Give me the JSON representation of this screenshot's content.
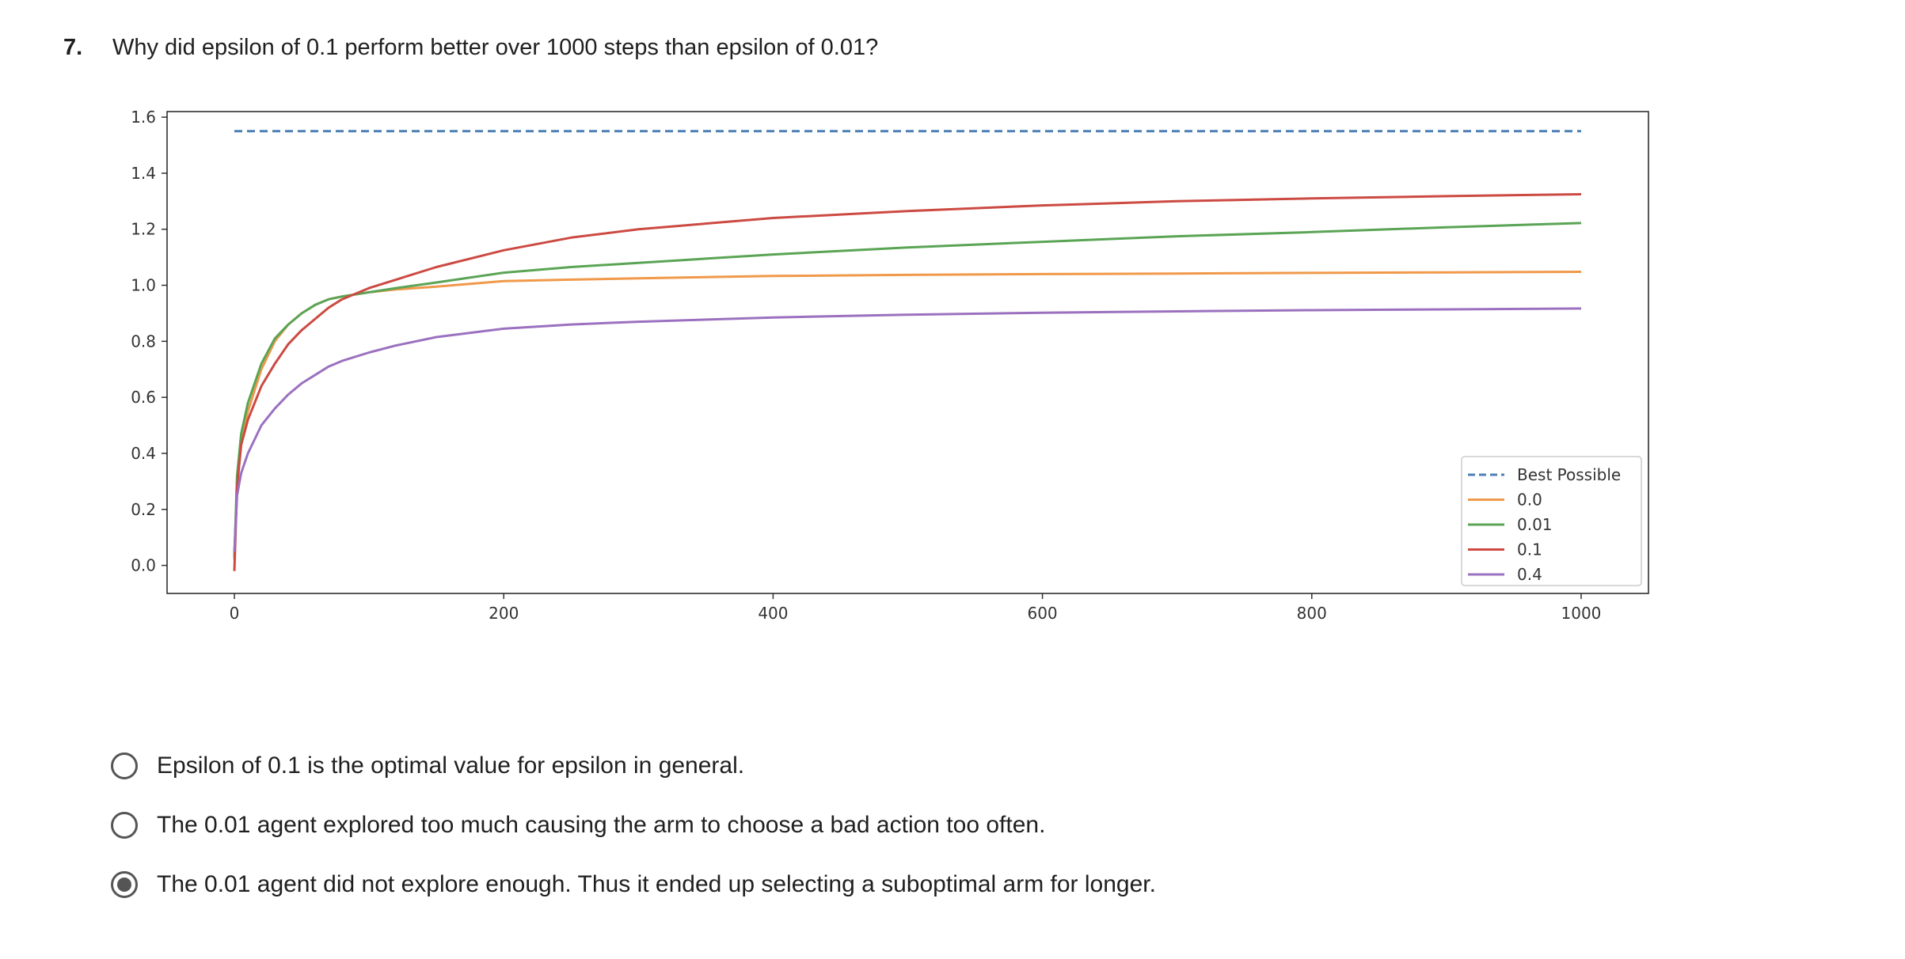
{
  "question": {
    "number": "7.",
    "text": "Why did epsilon of 0.1 perform better over 1000 steps than epsilon of 0.01?"
  },
  "options": [
    {
      "label": "Epsilon of 0.1 is the optimal value for epsilon in general.",
      "selected": false
    },
    {
      "label": "The 0.01 agent explored too much causing the arm to choose a bad action too often.",
      "selected": false
    },
    {
      "label": "The 0.01 agent did not explore enough. Thus it ended up selecting a suboptimal arm for longer.",
      "selected": true
    }
  ],
  "chart_data": {
    "type": "line",
    "title": "",
    "xlabel": "",
    "ylabel": "",
    "xlim": [
      -50,
      1050
    ],
    "ylim": [
      -0.1,
      1.62
    ],
    "xticks": [
      0,
      200,
      400,
      600,
      800,
      1000
    ],
    "yticks": [
      0.0,
      0.2,
      0.4,
      0.6,
      0.8,
      1.0,
      1.2,
      1.4,
      1.6
    ],
    "grid": false,
    "legend_position": "center-right",
    "series": [
      {
        "name": "Best Possible",
        "color": "#4c80b4",
        "dashed": true,
        "x": [
          0,
          1000
        ],
        "y": [
          1.55,
          1.55
        ]
      },
      {
        "name": "0.0",
        "color": "#f0994a",
        "dashed": false,
        "x": [
          0,
          2,
          5,
          10,
          20,
          30,
          40,
          50,
          60,
          70,
          80,
          100,
          120,
          150,
          200,
          250,
          300,
          400,
          500,
          600,
          700,
          800,
          900,
          1000
        ],
        "y": [
          0.02,
          0.3,
          0.45,
          0.55,
          0.7,
          0.8,
          0.86,
          0.9,
          0.93,
          0.95,
          0.96,
          0.975,
          0.985,
          0.995,
          1.015,
          1.02,
          1.025,
          1.033,
          1.037,
          1.04,
          1.042,
          1.044,
          1.046,
          1.048
        ]
      },
      {
        "name": "0.01",
        "color": "#5aa455",
        "dashed": false,
        "x": [
          0,
          2,
          5,
          10,
          20,
          30,
          40,
          50,
          60,
          70,
          80,
          100,
          120,
          150,
          200,
          250,
          300,
          400,
          500,
          600,
          700,
          800,
          900,
          1000
        ],
        "y": [
          0.03,
          0.32,
          0.47,
          0.58,
          0.72,
          0.81,
          0.86,
          0.9,
          0.93,
          0.95,
          0.96,
          0.975,
          0.99,
          1.01,
          1.045,
          1.065,
          1.08,
          1.11,
          1.135,
          1.155,
          1.175,
          1.19,
          1.207,
          1.222
        ]
      },
      {
        "name": "0.1",
        "color": "#cc4a42",
        "dashed": false,
        "x": [
          0,
          2,
          5,
          10,
          20,
          30,
          40,
          50,
          60,
          70,
          80,
          100,
          120,
          150,
          200,
          250,
          300,
          400,
          500,
          600,
          700,
          800,
          900,
          1000
        ],
        "y": [
          -0.02,
          0.28,
          0.43,
          0.52,
          0.64,
          0.72,
          0.79,
          0.84,
          0.88,
          0.92,
          0.95,
          0.99,
          1.02,
          1.065,
          1.125,
          1.17,
          1.2,
          1.24,
          1.265,
          1.285,
          1.3,
          1.31,
          1.318,
          1.325
        ]
      },
      {
        "name": "0.4",
        "color": "#9b71bf",
        "dashed": false,
        "x": [
          0,
          2,
          5,
          10,
          20,
          30,
          40,
          50,
          60,
          70,
          80,
          100,
          120,
          150,
          200,
          250,
          300,
          400,
          500,
          600,
          700,
          800,
          900,
          1000
        ],
        "y": [
          0.05,
          0.25,
          0.33,
          0.4,
          0.5,
          0.56,
          0.61,
          0.65,
          0.68,
          0.71,
          0.73,
          0.76,
          0.785,
          0.815,
          0.845,
          0.86,
          0.87,
          0.885,
          0.895,
          0.902,
          0.907,
          0.911,
          0.914,
          0.917
        ]
      }
    ]
  }
}
